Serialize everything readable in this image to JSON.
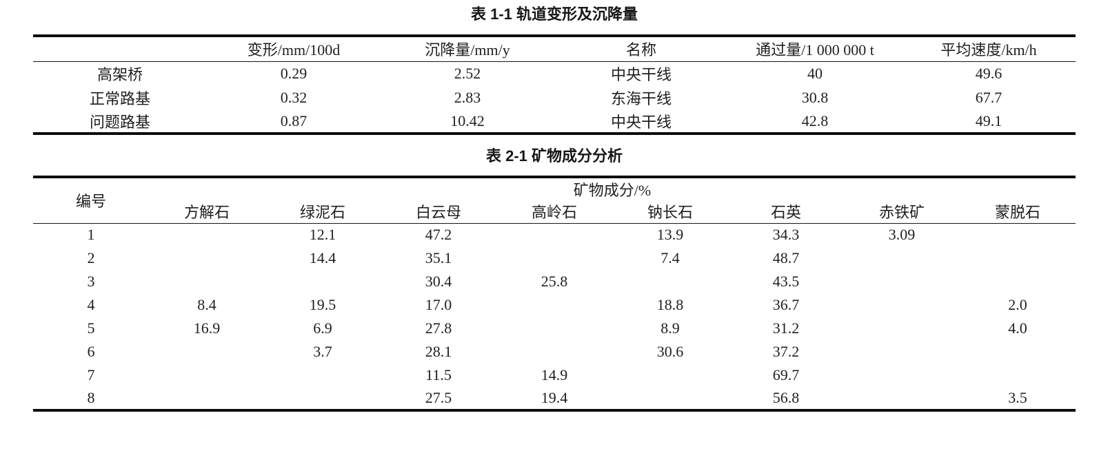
{
  "page": {
    "background": "#ffffff",
    "text_color": "#1f1f1f",
    "rule_color": "#0c0c0c"
  },
  "table1": {
    "title": "表 1-1 轨道变形及沉降量",
    "columns": [
      "",
      "变形/mm/100d",
      "沉降量/mm/y",
      "名称",
      "通过量/1 000 000 t",
      "平均速度/km/h"
    ],
    "rows": [
      [
        "高架桥",
        "0.29",
        "2.52",
        "中央干线",
        "40",
        "49.6"
      ],
      [
        "正常路基",
        "0.32",
        "2.83",
        "东海干线",
        "30.8",
        "67.7"
      ],
      [
        "问题路基",
        "0.87",
        "10.42",
        "中央干线",
        "42.8",
        "49.1"
      ]
    ]
  },
  "table2": {
    "title": "表 2-1 矿物成分分析",
    "id_header": "编号",
    "group_header": "矿物成分/%",
    "mineral_columns": [
      "方解石",
      "绿泥石",
      "白云母",
      "高岭石",
      "钠长石",
      "石英",
      "赤铁矿",
      "蒙脱石"
    ],
    "rows": [
      [
        "1",
        "",
        "12.1",
        "47.2",
        "",
        "13.9",
        "34.3",
        "3.09",
        ""
      ],
      [
        "2",
        "",
        "14.4",
        "35.1",
        "",
        "7.4",
        "48.7",
        "",
        ""
      ],
      [
        "3",
        "",
        "",
        "30.4",
        "25.8",
        "",
        "43.5",
        "",
        ""
      ],
      [
        "4",
        "8.4",
        "19.5",
        "17.0",
        "",
        "18.8",
        "36.7",
        "",
        "2.0"
      ],
      [
        "5",
        "16.9",
        "6.9",
        "27.8",
        "",
        "8.9",
        "31.2",
        "",
        "4.0"
      ],
      [
        "6",
        "",
        "3.7",
        "28.1",
        "",
        "30.6",
        "37.2",
        "",
        ""
      ],
      [
        "7",
        "",
        "",
        "11.5",
        "14.9",
        "",
        "69.7",
        "",
        ""
      ],
      [
        "8",
        "",
        "",
        "27.5",
        "19.4",
        "",
        "56.8",
        "",
        "3.5"
      ]
    ]
  }
}
